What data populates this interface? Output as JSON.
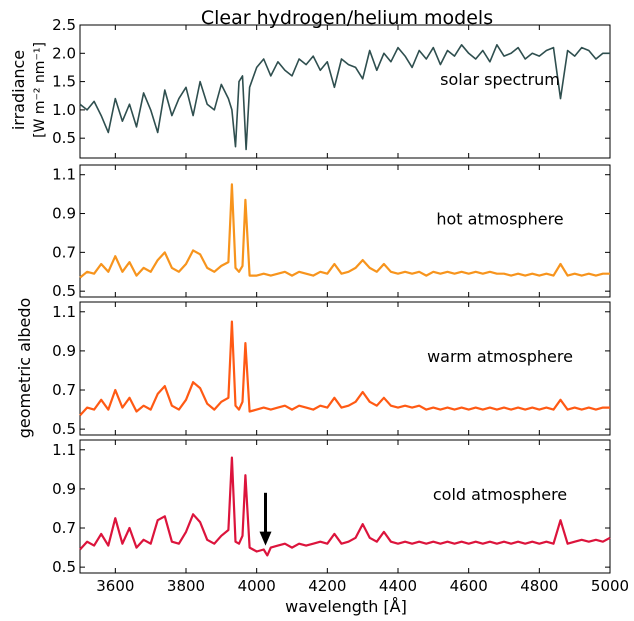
{
  "title": "Clear hydrogen/helium models",
  "xlabel": "wavelength [Å]",
  "shared_ylabel": "geometric albedo",
  "x_ticks": [
    3600,
    3800,
    4000,
    4200,
    4400,
    4600,
    4800,
    5000
  ],
  "chart_data": [
    {
      "type": "line",
      "panel": "solar",
      "label": "solar spectrum",
      "ylabel": "irradiance",
      "ylabel_units": "[W m⁻² nm⁻¹]",
      "xlim": [
        3500,
        5000
      ],
      "ylim": [
        0.15,
        2.5
      ],
      "yticks": [
        0.5,
        1.0,
        1.5,
        2.0,
        2.5
      ],
      "color": "#2f4f4f",
      "series": [
        {
          "x": [
            3500,
            3520,
            3540,
            3560,
            3580,
            3600,
            3620,
            3640,
            3660,
            3680,
            3700,
            3720,
            3740,
            3760,
            3780,
            3800,
            3820,
            3840,
            3860,
            3880,
            3900,
            3920,
            3930,
            3940,
            3950,
            3960,
            3970,
            3980,
            4000,
            4020,
            4040,
            4060,
            4080,
            4100,
            4120,
            4140,
            4160,
            4180,
            4200,
            4220,
            4240,
            4260,
            4280,
            4300,
            4320,
            4340,
            4360,
            4380,
            4400,
            4420,
            4440,
            4460,
            4480,
            4500,
            4520,
            4540,
            4560,
            4580,
            4600,
            4620,
            4640,
            4660,
            4680,
            4700,
            4720,
            4740,
            4760,
            4780,
            4800,
            4820,
            4840,
            4860,
            4880,
            4900,
            4920,
            4940,
            4960,
            4980,
            5000
          ],
          "y": [
            1.1,
            1.0,
            1.15,
            0.9,
            0.6,
            1.2,
            0.8,
            1.1,
            0.7,
            1.3,
            1.0,
            0.6,
            1.35,
            0.9,
            1.2,
            1.4,
            0.9,
            1.5,
            1.1,
            1.0,
            1.45,
            1.2,
            1.0,
            0.35,
            1.5,
            1.6,
            0.3,
            1.4,
            1.75,
            1.9,
            1.6,
            1.85,
            1.7,
            1.6,
            1.9,
            1.8,
            1.95,
            1.7,
            1.85,
            1.4,
            1.9,
            1.8,
            1.75,
            1.55,
            2.05,
            1.7,
            2.0,
            1.85,
            2.1,
            1.95,
            1.75,
            2.05,
            1.9,
            2.1,
            1.8,
            2.05,
            1.95,
            2.15,
            2.0,
            1.9,
            2.05,
            1.85,
            2.15,
            1.95,
            2.0,
            2.1,
            1.9,
            2.0,
            1.95,
            2.05,
            2.1,
            1.2,
            2.05,
            1.95,
            2.1,
            2.05,
            1.9,
            2.0,
            2.0
          ]
        }
      ]
    },
    {
      "type": "line",
      "panel": "hot",
      "label": "hot atmosphere",
      "xlim": [
        3500,
        5000
      ],
      "ylim": [
        0.47,
        1.15
      ],
      "yticks": [
        0.5,
        0.7,
        0.9,
        1.1
      ],
      "color": "#f7941d",
      "series": [
        {
          "x": [
            3500,
            3520,
            3540,
            3560,
            3580,
            3600,
            3620,
            3640,
            3660,
            3680,
            3700,
            3720,
            3740,
            3760,
            3780,
            3800,
            3820,
            3840,
            3860,
            3880,
            3900,
            3920,
            3930,
            3940,
            3950,
            3960,
            3968,
            3980,
            4000,
            4020,
            4040,
            4060,
            4080,
            4100,
            4120,
            4140,
            4160,
            4180,
            4200,
            4220,
            4240,
            4260,
            4280,
            4300,
            4320,
            4340,
            4360,
            4380,
            4400,
            4420,
            4440,
            4460,
            4480,
            4500,
            4520,
            4540,
            4560,
            4580,
            4600,
            4620,
            4640,
            4660,
            4680,
            4700,
            4720,
            4740,
            4760,
            4780,
            4800,
            4820,
            4840,
            4860,
            4880,
            4900,
            4920,
            4940,
            4960,
            4980,
            5000
          ],
          "y": [
            0.57,
            0.6,
            0.59,
            0.64,
            0.6,
            0.68,
            0.6,
            0.65,
            0.58,
            0.62,
            0.6,
            0.66,
            0.7,
            0.62,
            0.6,
            0.64,
            0.71,
            0.69,
            0.62,
            0.6,
            0.63,
            0.65,
            1.05,
            0.62,
            0.6,
            0.63,
            0.97,
            0.58,
            0.58,
            0.59,
            0.58,
            0.59,
            0.6,
            0.58,
            0.6,
            0.59,
            0.58,
            0.6,
            0.59,
            0.64,
            0.59,
            0.6,
            0.62,
            0.66,
            0.62,
            0.6,
            0.64,
            0.6,
            0.59,
            0.6,
            0.59,
            0.6,
            0.58,
            0.6,
            0.59,
            0.6,
            0.59,
            0.6,
            0.59,
            0.6,
            0.59,
            0.6,
            0.59,
            0.59,
            0.58,
            0.59,
            0.58,
            0.59,
            0.58,
            0.59,
            0.58,
            0.64,
            0.58,
            0.59,
            0.58,
            0.59,
            0.58,
            0.59,
            0.59
          ]
        }
      ]
    },
    {
      "type": "line",
      "panel": "warm",
      "label": "warm atmosphere",
      "xlim": [
        3500,
        5000
      ],
      "ylim": [
        0.47,
        1.15
      ],
      "yticks": [
        0.5,
        0.7,
        0.9,
        1.1
      ],
      "color": "#ff5a14",
      "series": [
        {
          "x": [
            3500,
            3520,
            3540,
            3560,
            3580,
            3600,
            3620,
            3640,
            3660,
            3680,
            3700,
            3720,
            3740,
            3760,
            3780,
            3800,
            3820,
            3840,
            3860,
            3880,
            3900,
            3920,
            3930,
            3940,
            3950,
            3960,
            3968,
            3980,
            4000,
            4020,
            4040,
            4060,
            4080,
            4100,
            4120,
            4140,
            4160,
            4180,
            4200,
            4220,
            4240,
            4260,
            4280,
            4300,
            4320,
            4340,
            4360,
            4380,
            4400,
            4420,
            4440,
            4460,
            4480,
            4500,
            4520,
            4540,
            4560,
            4580,
            4600,
            4620,
            4640,
            4660,
            4680,
            4700,
            4720,
            4740,
            4760,
            4780,
            4800,
            4820,
            4840,
            4860,
            4880,
            4900,
            4920,
            4940,
            4960,
            4980,
            5000
          ],
          "y": [
            0.57,
            0.61,
            0.6,
            0.65,
            0.6,
            0.7,
            0.61,
            0.66,
            0.59,
            0.62,
            0.6,
            0.68,
            0.72,
            0.62,
            0.6,
            0.65,
            0.74,
            0.71,
            0.63,
            0.6,
            0.64,
            0.66,
            1.05,
            0.62,
            0.6,
            0.64,
            0.94,
            0.59,
            0.6,
            0.61,
            0.6,
            0.61,
            0.62,
            0.6,
            0.62,
            0.61,
            0.6,
            0.62,
            0.61,
            0.66,
            0.61,
            0.62,
            0.64,
            0.69,
            0.64,
            0.62,
            0.66,
            0.62,
            0.61,
            0.62,
            0.61,
            0.62,
            0.6,
            0.61,
            0.6,
            0.61,
            0.6,
            0.61,
            0.6,
            0.61,
            0.6,
            0.61,
            0.6,
            0.61,
            0.6,
            0.61,
            0.6,
            0.61,
            0.6,
            0.61,
            0.6,
            0.65,
            0.6,
            0.61,
            0.6,
            0.61,
            0.6,
            0.61,
            0.61
          ]
        }
      ]
    },
    {
      "type": "line",
      "panel": "cold",
      "label": "cold atmosphere",
      "xlim": [
        3500,
        5000
      ],
      "ylim": [
        0.47,
        1.15
      ],
      "yticks": [
        0.5,
        0.7,
        0.9,
        1.1
      ],
      "color": "#dc143c",
      "annotation": {
        "type": "arrow",
        "x": 4025,
        "y_from": 0.88,
        "y_to": 0.62
      },
      "series": [
        {
          "x": [
            3500,
            3520,
            3540,
            3560,
            3580,
            3600,
            3620,
            3640,
            3660,
            3680,
            3700,
            3720,
            3740,
            3760,
            3780,
            3800,
            3820,
            3840,
            3860,
            3880,
            3900,
            3920,
            3930,
            3940,
            3950,
            3960,
            3968,
            3980,
            4000,
            4020,
            4030,
            4040,
            4060,
            4080,
            4100,
            4120,
            4140,
            4160,
            4180,
            4200,
            4220,
            4240,
            4260,
            4280,
            4300,
            4320,
            4340,
            4360,
            4380,
            4400,
            4420,
            4440,
            4460,
            4480,
            4500,
            4520,
            4540,
            4560,
            4580,
            4600,
            4620,
            4640,
            4660,
            4680,
            4700,
            4720,
            4740,
            4760,
            4780,
            4800,
            4820,
            4840,
            4860,
            4880,
            4900,
            4920,
            4940,
            4960,
            4980,
            5000
          ],
          "y": [
            0.59,
            0.63,
            0.61,
            0.67,
            0.61,
            0.75,
            0.62,
            0.7,
            0.6,
            0.64,
            0.62,
            0.74,
            0.76,
            0.63,
            0.62,
            0.68,
            0.77,
            0.73,
            0.64,
            0.62,
            0.66,
            0.69,
            1.06,
            0.63,
            0.62,
            0.66,
            0.97,
            0.6,
            0.58,
            0.59,
            0.56,
            0.6,
            0.61,
            0.62,
            0.6,
            0.62,
            0.61,
            0.62,
            0.63,
            0.62,
            0.67,
            0.62,
            0.63,
            0.65,
            0.72,
            0.65,
            0.63,
            0.68,
            0.63,
            0.62,
            0.63,
            0.62,
            0.63,
            0.62,
            0.63,
            0.62,
            0.63,
            0.62,
            0.63,
            0.62,
            0.63,
            0.62,
            0.63,
            0.62,
            0.63,
            0.62,
            0.63,
            0.62,
            0.63,
            0.62,
            0.63,
            0.62,
            0.74,
            0.62,
            0.63,
            0.64,
            0.63,
            0.64,
            0.63,
            0.65
          ]
        }
      ]
    }
  ]
}
